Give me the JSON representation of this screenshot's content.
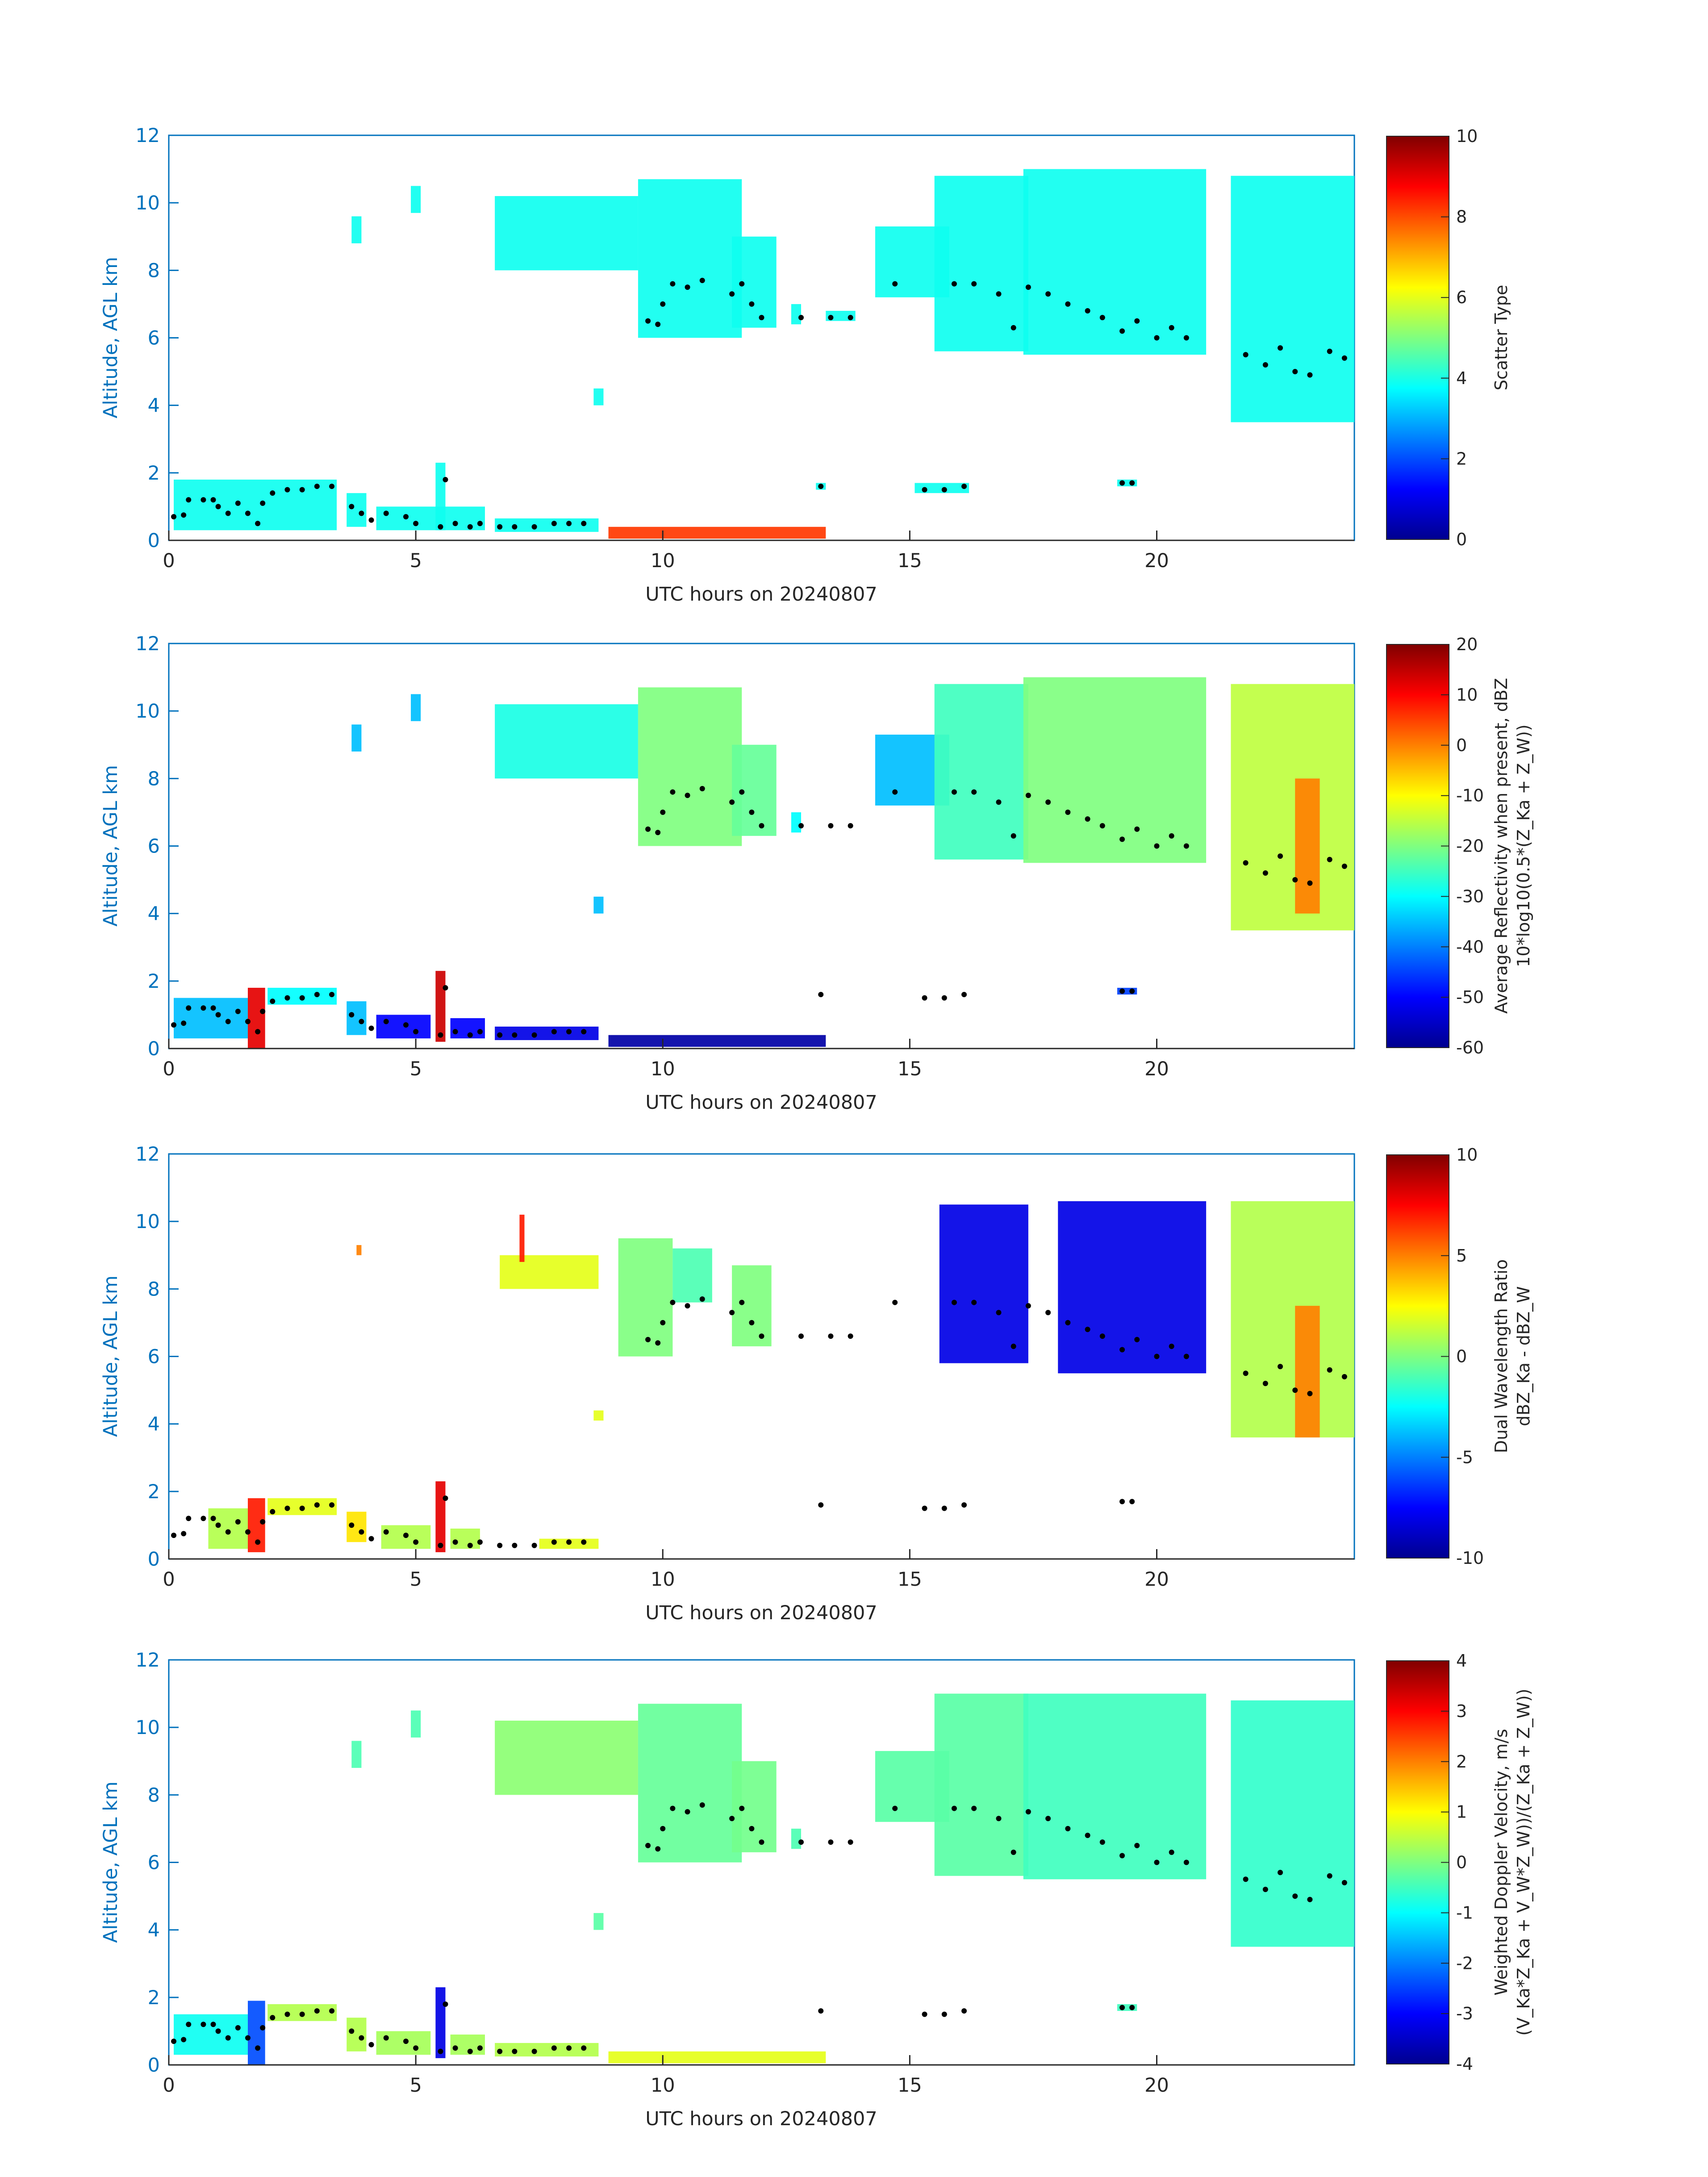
{
  "figure": {
    "date_label": "UTC hours on 20240807"
  },
  "colors": {
    "axis_blue": "#0072BD",
    "text_dark": "#262626",
    "marker": "#000000"
  },
  "chart_data": [
    {
      "type": "heatmap",
      "xlabel": "UTC hours on 20240807",
      "ylabel": "Altitude, AGL km",
      "xlim": [
        0,
        24
      ],
      "ylim": [
        0,
        12
      ],
      "xticks": [
        0,
        5,
        10,
        15,
        20
      ],
      "yticks": [
        0,
        2,
        4,
        6,
        8,
        10,
        12
      ],
      "colorbar": {
        "label_lines": [
          "Scatter Type"
        ],
        "range": [
          0,
          10
        ],
        "ticks": [
          0,
          2,
          4,
          6,
          8,
          10
        ]
      },
      "cloud_regions": [
        {
          "x0": 0.1,
          "x1": 3.4,
          "y0": 0.3,
          "y1": 1.8,
          "value": 3.9
        },
        {
          "x0": 3.6,
          "x1": 4.0,
          "y0": 0.4,
          "y1": 1.4,
          "value": 3.9
        },
        {
          "x0": 4.2,
          "x1": 6.4,
          "y0": 0.3,
          "y1": 1.0,
          "value": 3.9
        },
        {
          "x0": 5.4,
          "x1": 5.6,
          "y0": 0.3,
          "y1": 2.3,
          "value": 3.9
        },
        {
          "x0": 6.6,
          "x1": 8.7,
          "y0": 0.25,
          "y1": 0.65,
          "value": 3.9
        },
        {
          "x0": 8.9,
          "x1": 13.3,
          "y0": 0.05,
          "y1": 0.4,
          "value": 8.2
        },
        {
          "x0": 3.7,
          "x1": 3.9,
          "y0": 8.8,
          "y1": 9.6,
          "value": 3.9
        },
        {
          "x0": 4.9,
          "x1": 5.1,
          "y0": 9.7,
          "y1": 10.5,
          "value": 3.9
        },
        {
          "x0": 6.6,
          "x1": 9.5,
          "y0": 8.0,
          "y1": 10.2,
          "value": 3.9
        },
        {
          "x0": 9.5,
          "x1": 11.6,
          "y0": 6.0,
          "y1": 10.7,
          "value": 3.9
        },
        {
          "x0": 11.4,
          "x1": 12.3,
          "y0": 6.3,
          "y1": 9.0,
          "value": 3.9
        },
        {
          "x0": 12.6,
          "x1": 12.8,
          "y0": 6.4,
          "y1": 7.0,
          "value": 3.9
        },
        {
          "x0": 13.3,
          "x1": 13.9,
          "y0": 6.5,
          "y1": 6.8,
          "value": 3.9
        },
        {
          "x0": 14.3,
          "x1": 15.8,
          "y0": 7.2,
          "y1": 9.3,
          "value": 3.9
        },
        {
          "x0": 15.5,
          "x1": 17.4,
          "y0": 5.6,
          "y1": 10.8,
          "value": 3.9
        },
        {
          "x0": 17.3,
          "x1": 21.0,
          "y0": 5.5,
          "y1": 11.0,
          "value": 3.9
        },
        {
          "x0": 21.5,
          "x1": 24.0,
          "y0": 3.5,
          "y1": 10.8,
          "value": 3.9
        },
        {
          "x0": 8.6,
          "x1": 8.8,
          "y0": 4.0,
          "y1": 4.5,
          "value": 3.9
        },
        {
          "x0": 13.1,
          "x1": 13.3,
          "y0": 1.5,
          "y1": 1.7,
          "value": 3.9
        },
        {
          "x0": 15.1,
          "x1": 16.2,
          "y0": 1.4,
          "y1": 1.7,
          "value": 3.9
        },
        {
          "x0": 19.2,
          "x1": 19.6,
          "y0": 1.6,
          "y1": 1.8,
          "value": 3.9
        }
      ]
    },
    {
      "type": "heatmap",
      "xlabel": "UTC hours on 20240807",
      "ylabel": "Altitude, AGL km",
      "xlim": [
        0,
        24
      ],
      "ylim": [
        0,
        12
      ],
      "xticks": [
        0,
        5,
        10,
        15,
        20
      ],
      "yticks": [
        0,
        2,
        4,
        6,
        8,
        10,
        12
      ],
      "colorbar": {
        "label_lines": [
          "Average Reflectivity when present, dBZ",
          "10*log10(0.5*(Z_Ka + Z_W))"
        ],
        "range": [
          -60,
          20
        ],
        "ticks": [
          -60,
          -50,
          -40,
          -30,
          -20,
          -10,
          0,
          10,
          20
        ]
      },
      "cloud_regions": [
        {
          "x0": 0.1,
          "x1": 1.6,
          "y0": 0.3,
          "y1": 1.5,
          "value": -35
        },
        {
          "x0": 1.6,
          "x1": 1.95,
          "y0": 0.0,
          "y1": 1.8,
          "value": 12
        },
        {
          "x0": 2.0,
          "x1": 3.4,
          "y0": 1.3,
          "y1": 1.8,
          "value": -30
        },
        {
          "x0": 3.6,
          "x1": 4.0,
          "y0": 0.4,
          "y1": 1.4,
          "value": -35
        },
        {
          "x0": 4.2,
          "x1": 5.3,
          "y0": 0.3,
          "y1": 1.0,
          "value": -50
        },
        {
          "x0": 5.4,
          "x1": 5.6,
          "y0": 0.2,
          "y1": 2.3,
          "value": 14
        },
        {
          "x0": 5.7,
          "x1": 6.4,
          "y0": 0.3,
          "y1": 0.9,
          "value": -50
        },
        {
          "x0": 6.6,
          "x1": 8.7,
          "y0": 0.25,
          "y1": 0.65,
          "value": -52
        },
        {
          "x0": 8.9,
          "x1": 13.3,
          "y0": 0.05,
          "y1": 0.4,
          "value": -57
        },
        {
          "x0": 3.7,
          "x1": 3.9,
          "y0": 8.8,
          "y1": 9.6,
          "value": -35
        },
        {
          "x0": 4.9,
          "x1": 5.1,
          "y0": 9.7,
          "y1": 10.5,
          "value": -35
        },
        {
          "x0": 6.6,
          "x1": 9.5,
          "y0": 8.0,
          "y1": 10.2,
          "value": -28
        },
        {
          "x0": 9.5,
          "x1": 11.6,
          "y0": 6.0,
          "y1": 10.7,
          "value": -20
        },
        {
          "x0": 11.4,
          "x1": 12.3,
          "y0": 6.3,
          "y1": 9.0,
          "value": -22
        },
        {
          "x0": 12.6,
          "x1": 12.8,
          "y0": 6.4,
          "y1": 7.0,
          "value": -30
        },
        {
          "x0": 14.3,
          "x1": 15.8,
          "y0": 7.2,
          "y1": 9.3,
          "value": -35
        },
        {
          "x0": 15.5,
          "x1": 17.4,
          "y0": 5.6,
          "y1": 10.8,
          "value": -25
        },
        {
          "x0": 17.3,
          "x1": 21.0,
          "y0": 5.5,
          "y1": 11.0,
          "value": -20
        },
        {
          "x0": 21.5,
          "x1": 24.0,
          "y0": 3.5,
          "y1": 10.8,
          "value": -15
        },
        {
          "x0": 22.8,
          "x1": 23.3,
          "y0": 4.0,
          "y1": 8.0,
          "value": 0
        },
        {
          "x0": 8.6,
          "x1": 8.8,
          "y0": 4.0,
          "y1": 4.5,
          "value": -35
        },
        {
          "x0": 19.2,
          "x1": 19.6,
          "y0": 1.6,
          "y1": 1.8,
          "value": -45
        }
      ]
    },
    {
      "type": "heatmap",
      "xlabel": "UTC hours on 20240807",
      "ylabel": "Altitude, AGL km",
      "xlim": [
        0,
        24
      ],
      "ylim": [
        0,
        12
      ],
      "xticks": [
        0,
        5,
        10,
        15,
        20
      ],
      "yticks": [
        0,
        2,
        4,
        6,
        8,
        10,
        12
      ],
      "colorbar": {
        "label_lines": [
          "Dual Wavelength Ratio",
          "dBZ_Ka - dBZ_W"
        ],
        "range": [
          -10,
          10
        ],
        "ticks": [
          -10,
          -5,
          0,
          5,
          10
        ]
      },
      "cloud_regions": [
        {
          "x0": 0.8,
          "x1": 1.6,
          "y0": 0.3,
          "y1": 1.5,
          "value": 1
        },
        {
          "x0": 1.6,
          "x1": 1.95,
          "y0": 0.2,
          "y1": 1.8,
          "value": 7
        },
        {
          "x0": 2.0,
          "x1": 3.4,
          "y0": 1.3,
          "y1": 1.8,
          "value": 2
        },
        {
          "x0": 3.6,
          "x1": 4.0,
          "y0": 0.5,
          "y1": 1.4,
          "value": 3
        },
        {
          "x0": 4.3,
          "x1": 5.3,
          "y0": 0.3,
          "y1": 1.0,
          "value": 1
        },
        {
          "x0": 5.4,
          "x1": 5.6,
          "y0": 0.2,
          "y1": 2.3,
          "value": 8
        },
        {
          "x0": 5.7,
          "x1": 6.3,
          "y0": 0.3,
          "y1": 0.9,
          "value": 1
        },
        {
          "x0": 7.5,
          "x1": 8.7,
          "y0": 0.3,
          "y1": 0.6,
          "value": 2
        },
        {
          "x0": 3.8,
          "x1": 3.9,
          "y0": 9.0,
          "y1": 9.3,
          "value": 5
        },
        {
          "x0": 6.7,
          "x1": 8.7,
          "y0": 8.0,
          "y1": 9.0,
          "value": 2
        },
        {
          "x0": 7.1,
          "x1": 7.2,
          "y0": 8.8,
          "y1": 10.2,
          "value": 7
        },
        {
          "x0": 9.1,
          "x1": 10.2,
          "y0": 6.0,
          "y1": 9.5,
          "value": 0
        },
        {
          "x0": 10.2,
          "x1": 11.0,
          "y0": 7.6,
          "y1": 9.2,
          "value": -1
        },
        {
          "x0": 11.4,
          "x1": 12.2,
          "y0": 6.3,
          "y1": 8.7,
          "value": 0
        },
        {
          "x0": 15.6,
          "x1": 17.4,
          "y0": 5.8,
          "y1": 10.5,
          "value": -8
        },
        {
          "x0": 18.0,
          "x1": 21.0,
          "y0": 5.5,
          "y1": 10.6,
          "value": -8
        },
        {
          "x0": 21.5,
          "x1": 24.0,
          "y0": 3.6,
          "y1": 10.6,
          "value": 1
        },
        {
          "x0": 22.8,
          "x1": 23.3,
          "y0": 3.6,
          "y1": 7.5,
          "value": 5
        },
        {
          "x0": 8.6,
          "x1": 8.8,
          "y0": 4.1,
          "y1": 4.4,
          "value": 2
        }
      ]
    },
    {
      "type": "heatmap",
      "xlabel": "UTC hours on 20240807",
      "ylabel": "Altitude, AGL km",
      "xlim": [
        0,
        24
      ],
      "ylim": [
        0,
        12
      ],
      "xticks": [
        0,
        5,
        10,
        15,
        20
      ],
      "yticks": [
        0,
        2,
        4,
        6,
        8,
        10,
        12
      ],
      "colorbar": {
        "label_lines": [
          "Weighted Doppler Velocity, m/s",
          "(V_Ka*Z_Ka + V_W*Z_W))/(Z_Ka + Z_W))"
        ],
        "range": [
          -4,
          4
        ],
        "ticks": [
          -4,
          -3,
          -2,
          -1,
          0,
          1,
          2,
          3,
          4
        ]
      },
      "cloud_regions": [
        {
          "x0": 0.1,
          "x1": 1.6,
          "y0": 0.3,
          "y1": 1.5,
          "value": -0.9
        },
        {
          "x0": 1.6,
          "x1": 1.95,
          "y0": 0.0,
          "y1": 1.9,
          "value": -2.4
        },
        {
          "x0": 2.0,
          "x1": 3.4,
          "y0": 1.3,
          "y1": 1.8,
          "value": 0.4
        },
        {
          "x0": 3.6,
          "x1": 4.0,
          "y0": 0.4,
          "y1": 1.4,
          "value": 0.4
        },
        {
          "x0": 4.2,
          "x1": 5.3,
          "y0": 0.3,
          "y1": 1.0,
          "value": 0.3
        },
        {
          "x0": 5.4,
          "x1": 5.6,
          "y0": 0.2,
          "y1": 2.3,
          "value": -3.2
        },
        {
          "x0": 5.7,
          "x1": 6.4,
          "y0": 0.3,
          "y1": 0.9,
          "value": 0.3
        },
        {
          "x0": 6.6,
          "x1": 8.7,
          "y0": 0.25,
          "y1": 0.65,
          "value": 0.4
        },
        {
          "x0": 8.9,
          "x1": 13.3,
          "y0": 0.05,
          "y1": 0.4,
          "value": 0.8
        },
        {
          "x0": 3.7,
          "x1": 3.9,
          "y0": 8.8,
          "y1": 9.6,
          "value": -0.4
        },
        {
          "x0": 4.9,
          "x1": 5.1,
          "y0": 9.7,
          "y1": 10.5,
          "value": -0.4
        },
        {
          "x0": 6.6,
          "x1": 9.5,
          "y0": 8.0,
          "y1": 10.2,
          "value": 0.1
        },
        {
          "x0": 9.5,
          "x1": 11.6,
          "y0": 6.0,
          "y1": 10.7,
          "value": -0.2
        },
        {
          "x0": 11.4,
          "x1": 12.3,
          "y0": 6.3,
          "y1": 9.0,
          "value": -0.1
        },
        {
          "x0": 12.6,
          "x1": 12.8,
          "y0": 6.4,
          "y1": 7.0,
          "value": -0.4
        },
        {
          "x0": 14.3,
          "x1": 15.8,
          "y0": 7.2,
          "y1": 9.3,
          "value": -0.3
        },
        {
          "x0": 15.5,
          "x1": 17.4,
          "y0": 5.6,
          "y1": 11.0,
          "value": -0.3
        },
        {
          "x0": 17.3,
          "x1": 21.0,
          "y0": 5.5,
          "y1": 11.0,
          "value": -0.5
        },
        {
          "x0": 21.5,
          "x1": 24.0,
          "y0": 3.5,
          "y1": 10.8,
          "value": -0.6
        },
        {
          "x0": 8.6,
          "x1": 8.8,
          "y0": 4.0,
          "y1": 4.5,
          "value": -0.3
        },
        {
          "x0": 19.2,
          "x1": 19.6,
          "y0": 1.6,
          "y1": 1.8,
          "value": -0.5
        }
      ]
    }
  ],
  "marker_points": [
    [
      0.1,
      0.7
    ],
    [
      0.3,
      0.75
    ],
    [
      0.4,
      1.2
    ],
    [
      0.7,
      1.2
    ],
    [
      0.9,
      1.2
    ],
    [
      1.0,
      1.0
    ],
    [
      1.2,
      0.8
    ],
    [
      1.4,
      1.1
    ],
    [
      1.6,
      0.8
    ],
    [
      1.8,
      0.5
    ],
    [
      1.9,
      1.1
    ],
    [
      2.1,
      1.4
    ],
    [
      2.4,
      1.5
    ],
    [
      2.7,
      1.5
    ],
    [
      3.0,
      1.6
    ],
    [
      3.3,
      1.6
    ],
    [
      3.7,
      1.0
    ],
    [
      3.9,
      0.8
    ],
    [
      4.1,
      0.6
    ],
    [
      4.4,
      0.8
    ],
    [
      4.8,
      0.7
    ],
    [
      5.0,
      0.5
    ],
    [
      5.5,
      0.4
    ],
    [
      5.6,
      1.8
    ],
    [
      5.8,
      0.5
    ],
    [
      6.1,
      0.4
    ],
    [
      6.3,
      0.5
    ],
    [
      6.7,
      0.4
    ],
    [
      7.0,
      0.4
    ],
    [
      7.4,
      0.4
    ],
    [
      7.8,
      0.5
    ],
    [
      8.1,
      0.5
    ],
    [
      8.4,
      0.5
    ],
    [
      9.7,
      6.5
    ],
    [
      9.9,
      6.4
    ],
    [
      10.0,
      7.0
    ],
    [
      10.2,
      7.6
    ],
    [
      10.5,
      7.5
    ],
    [
      10.8,
      7.7
    ],
    [
      11.4,
      7.3
    ],
    [
      11.6,
      7.6
    ],
    [
      11.8,
      7.0
    ],
    [
      12.0,
      6.6
    ],
    [
      12.8,
      6.6
    ],
    [
      13.4,
      6.6
    ],
    [
      13.8,
      6.6
    ],
    [
      14.7,
      7.6
    ],
    [
      15.9,
      7.6
    ],
    [
      16.3,
      7.6
    ],
    [
      16.8,
      7.3
    ],
    [
      17.1,
      6.3
    ],
    [
      17.4,
      7.5
    ],
    [
      17.8,
      7.3
    ],
    [
      18.2,
      7.0
    ],
    [
      18.6,
      6.8
    ],
    [
      18.9,
      6.6
    ],
    [
      19.3,
      6.2
    ],
    [
      19.6,
      6.5
    ],
    [
      20.0,
      6.0
    ],
    [
      20.3,
      6.3
    ],
    [
      20.6,
      6.0
    ],
    [
      21.8,
      5.5
    ],
    [
      22.2,
      5.2
    ],
    [
      22.5,
      5.7
    ],
    [
      22.8,
      5.0
    ],
    [
      23.1,
      4.9
    ],
    [
      23.5,
      5.6
    ],
    [
      23.8,
      5.4
    ],
    [
      13.2,
      1.6
    ],
    [
      15.3,
      1.5
    ],
    [
      15.7,
      1.5
    ],
    [
      16.1,
      1.6
    ],
    [
      19.3,
      1.7
    ],
    [
      19.5,
      1.7
    ]
  ]
}
